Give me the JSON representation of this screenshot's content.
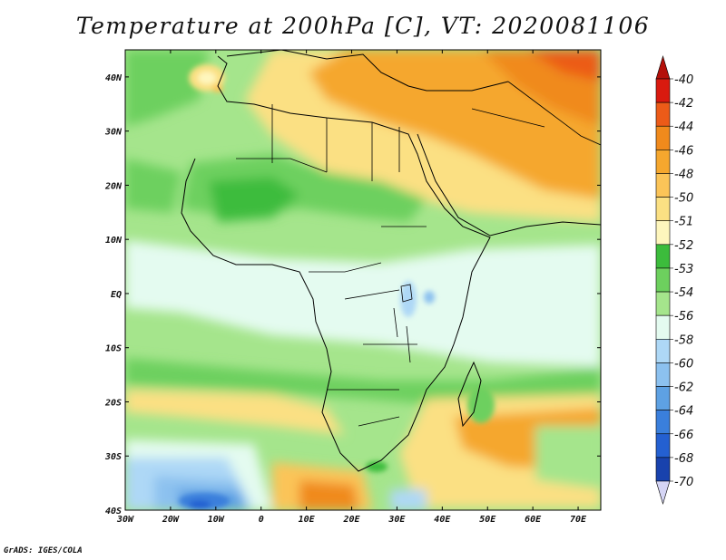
{
  "title": "Temperature at 200hPa [C], VT: 2020081106",
  "credit": "GrADS: IGES/COLA",
  "map": {
    "region": "Africa and surrounding oceans",
    "projection": "latlon",
    "lon_range": [
      -30,
      75
    ],
    "lat_range": [
      -40,
      45
    ],
    "lon_ticks": [
      {
        "value": -30,
        "label": "30W"
      },
      {
        "value": -20,
        "label": "20W"
      },
      {
        "value": -10,
        "label": "10W"
      },
      {
        "value": 0,
        "label": "0"
      },
      {
        "value": 10,
        "label": "10E"
      },
      {
        "value": 20,
        "label": "20E"
      },
      {
        "value": 30,
        "label": "30E"
      },
      {
        "value": 40,
        "label": "40E"
      },
      {
        "value": 50,
        "label": "50E"
      },
      {
        "value": 60,
        "label": "60E"
      },
      {
        "value": 70,
        "label": "70E"
      }
    ],
    "lat_ticks": [
      {
        "value": 40,
        "label": "40N"
      },
      {
        "value": 30,
        "label": "30N"
      },
      {
        "value": 20,
        "label": "20N"
      },
      {
        "value": 10,
        "label": "10N"
      },
      {
        "value": 0,
        "label": "EQ"
      },
      {
        "value": -10,
        "label": "10S"
      },
      {
        "value": -20,
        "label": "20S"
      },
      {
        "value": -30,
        "label": "30S"
      },
      {
        "value": -40,
        "label": "40S"
      }
    ]
  },
  "colorbar": {
    "levels": [
      {
        "label": "-40",
        "color": "#d91a0f"
      },
      {
        "label": "-42",
        "color": "#ec5b18"
      },
      {
        "label": "-44",
        "color": "#f08a1c"
      },
      {
        "label": "-46",
        "color": "#f5a72e"
      },
      {
        "label": "-48",
        "color": "#fbc458"
      },
      {
        "label": "-50",
        "color": "#fbe083"
      },
      {
        "label": "-51",
        "color": "#fef6bd"
      },
      {
        "label": "-52",
        "color": "#3cbc3c"
      },
      {
        "label": "-53",
        "color": "#6dd05e"
      },
      {
        "label": "-54",
        "color": "#a5e58c"
      },
      {
        "label": "-56",
        "color": "#e4fbf0"
      },
      {
        "label": "-58",
        "color": "#aed8f6"
      },
      {
        "label": "-60",
        "color": "#8cc1ef"
      },
      {
        "label": "-62",
        "color": "#5ea1e3"
      },
      {
        "label": "-64",
        "color": "#3a7fdc"
      },
      {
        "label": "-66",
        "color": "#2460d1"
      },
      {
        "label": "-68",
        "color": "#1842ad"
      },
      {
        "label": "-70",
        "color": "#0b1f85"
      }
    ],
    "top_triangle_color": "#b4100a",
    "bottom_triangle_color": "#d5d5f5"
  }
}
